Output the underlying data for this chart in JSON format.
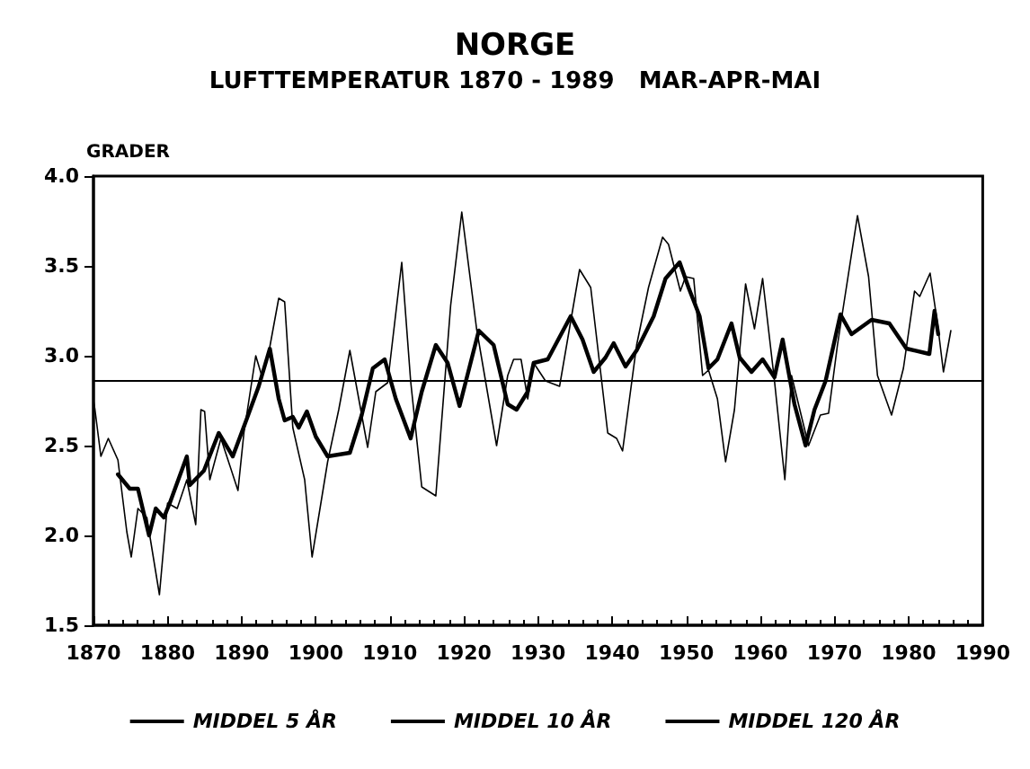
{
  "chart_data": {
    "type": "line",
    "title": "NORGE",
    "subtitle": "LUFTTEMPERATUR 1870 - 1989   MAR-APR-MAI",
    "ylabel": "GRADER",
    "xlim": [
      1870,
      1990
    ],
    "xticks": [
      1870,
      1880,
      1890,
      1900,
      1910,
      1920,
      1930,
      1940,
      1950,
      1960,
      1970,
      1980,
      1990
    ],
    "ylim": [
      1.5,
      4.0
    ],
    "yticks": [
      {
        "value": 1.5,
        "label": "1.5"
      },
      {
        "value": 2,
        "label": "2.0"
      },
      {
        "value": 2.5,
        "label": "2.5"
      },
      {
        "value": 3,
        "label": "3.0"
      },
      {
        "value": 3.5,
        "label": "3.5"
      },
      {
        "value": 4,
        "label": "4.0"
      }
    ],
    "grid": false,
    "legend": "bottom",
    "marker": "none",
    "line_style": "solid",
    "series": [
      {
        "name": "MIDDEL 5 ÅR",
        "color": "#000000",
        "x": [
          1870,
          1870.2,
          1871,
          1872,
          1873.3,
          1874.5,
          1875.1,
          1876,
          1877.2,
          1878.9,
          1880,
          1881.3,
          1882.6,
          1883.8,
          1884.5,
          1885,
          1885.7,
          1887.2,
          1889.5,
          1890.3,
          1891.9,
          1892.7,
          1893.8,
          1895,
          1895.8,
          1896.9,
          1898.5,
          1899.5,
          1901.6,
          1903.1,
          1904.6,
          1905.8,
          1907,
          1908.1,
          1909.7,
          1911.6,
          1912.8,
          1914.3,
          1916.2,
          1918.2,
          1919.7,
          1921.7,
          1924.4,
          1925.9,
          1926.7,
          1927.7,
          1928.6,
          1929.4,
          1931,
          1932.9,
          1935.6,
          1937.1,
          1939.4,
          1940.6,
          1941.4,
          1943.3,
          1944.9,
          1946.8,
          1947.6,
          1949.2,
          1949.9,
          1951,
          1952.2,
          1953,
          1954.2,
          1955.3,
          1956.5,
          1958,
          1959.2,
          1960.3,
          1961.9,
          1963.3,
          1964.2,
          1966.5,
          1968.1,
          1969.2,
          1970.4,
          1973.1,
          1974.6,
          1975.8,
          1977.7,
          1979.3,
          1980.8,
          1981.5,
          1982.9,
          1983.9,
          1984.7,
          1985.7
        ],
        "values": [
          2.75,
          2.7,
          2.44,
          2.54,
          2.42,
          2.02,
          1.88,
          2.15,
          2.1,
          1.67,
          2.18,
          2.15,
          2.31,
          2.06,
          2.7,
          2.69,
          2.31,
          2.54,
          2.25,
          2.57,
          3.0,
          2.89,
          3.05,
          3.32,
          3.3,
          2.6,
          2.31,
          1.88,
          2.41,
          2.7,
          3.03,
          2.76,
          2.49,
          2.8,
          2.85,
          3.52,
          2.86,
          2.27,
          2.22,
          3.28,
          3.8,
          3.15,
          2.5,
          2.89,
          2.98,
          2.98,
          2.76,
          2.96,
          2.86,
          2.83,
          3.48,
          3.38,
          2.57,
          2.54,
          2.47,
          3.06,
          3.38,
          3.66,
          3.62,
          3.36,
          3.44,
          3.43,
          2.89,
          2.92,
          2.76,
          2.41,
          2.7,
          3.4,
          3.15,
          3.43,
          2.86,
          2.31,
          2.89,
          2.5,
          2.67,
          2.68,
          3.06,
          3.78,
          3.44,
          2.89,
          2.67,
          2.93,
          3.36,
          3.33,
          3.46,
          3.18,
          2.91,
          3.14
        ]
      },
      {
        "name": "MIDDEL 10 ÅR",
        "color": "#000000",
        "x": [
          1873.3,
          1874.9,
          1876,
          1877.5,
          1878.4,
          1879.5,
          1880.3,
          1882.6,
          1883,
          1884.9,
          1886.9,
          1888.8,
          1890.7,
          1892.3,
          1893.8,
          1895,
          1895.8,
          1896.9,
          1897.7,
          1898.8,
          1900,
          1901.6,
          1904.6,
          1906.2,
          1907.7,
          1909.3,
          1910.8,
          1912.8,
          1914.3,
          1916.2,
          1917.8,
          1919.4,
          1922,
          1924,
          1925.9,
          1927.1,
          1928.6,
          1929.4,
          1931.3,
          1934.4,
          1936,
          1937.5,
          1939.1,
          1940.2,
          1941.8,
          1943.3,
          1945.6,
          1947.2,
          1949.1,
          1950.3,
          1951.8,
          1953,
          1954.2,
          1956.1,
          1957.2,
          1958.8,
          1960.3,
          1961.9,
          1963,
          1964.6,
          1966.1,
          1967.3,
          1968.8,
          1970.8,
          1972.3,
          1975,
          1977.4,
          1979.7,
          1982.8,
          1983.5,
          1984
        ],
        "values": [
          2.34,
          2.26,
          2.26,
          2.0,
          2.15,
          2.1,
          2.18,
          2.44,
          2.28,
          2.36,
          2.57,
          2.44,
          2.65,
          2.83,
          3.04,
          2.76,
          2.64,
          2.66,
          2.6,
          2.69,
          2.55,
          2.44,
          2.46,
          2.67,
          2.93,
          2.98,
          2.76,
          2.54,
          2.8,
          3.06,
          2.96,
          2.72,
          3.14,
          3.06,
          2.73,
          2.7,
          2.8,
          2.96,
          2.98,
          3.22,
          3.09,
          2.91,
          2.99,
          3.07,
          2.94,
          3.03,
          3.22,
          3.43,
          3.52,
          3.38,
          3.22,
          2.93,
          2.98,
          3.18,
          2.99,
          2.91,
          2.98,
          2.88,
          3.09,
          2.73,
          2.5,
          2.7,
          2.86,
          3.23,
          3.12,
          3.2,
          3.18,
          3.04,
          3.01,
          3.25,
          3.12
        ]
      },
      {
        "name": "MIDDEL 120 ÅR",
        "color": "#000000",
        "x": [
          1870,
          1990
        ],
        "values": [
          2.86,
          2.86
        ]
      }
    ]
  }
}
